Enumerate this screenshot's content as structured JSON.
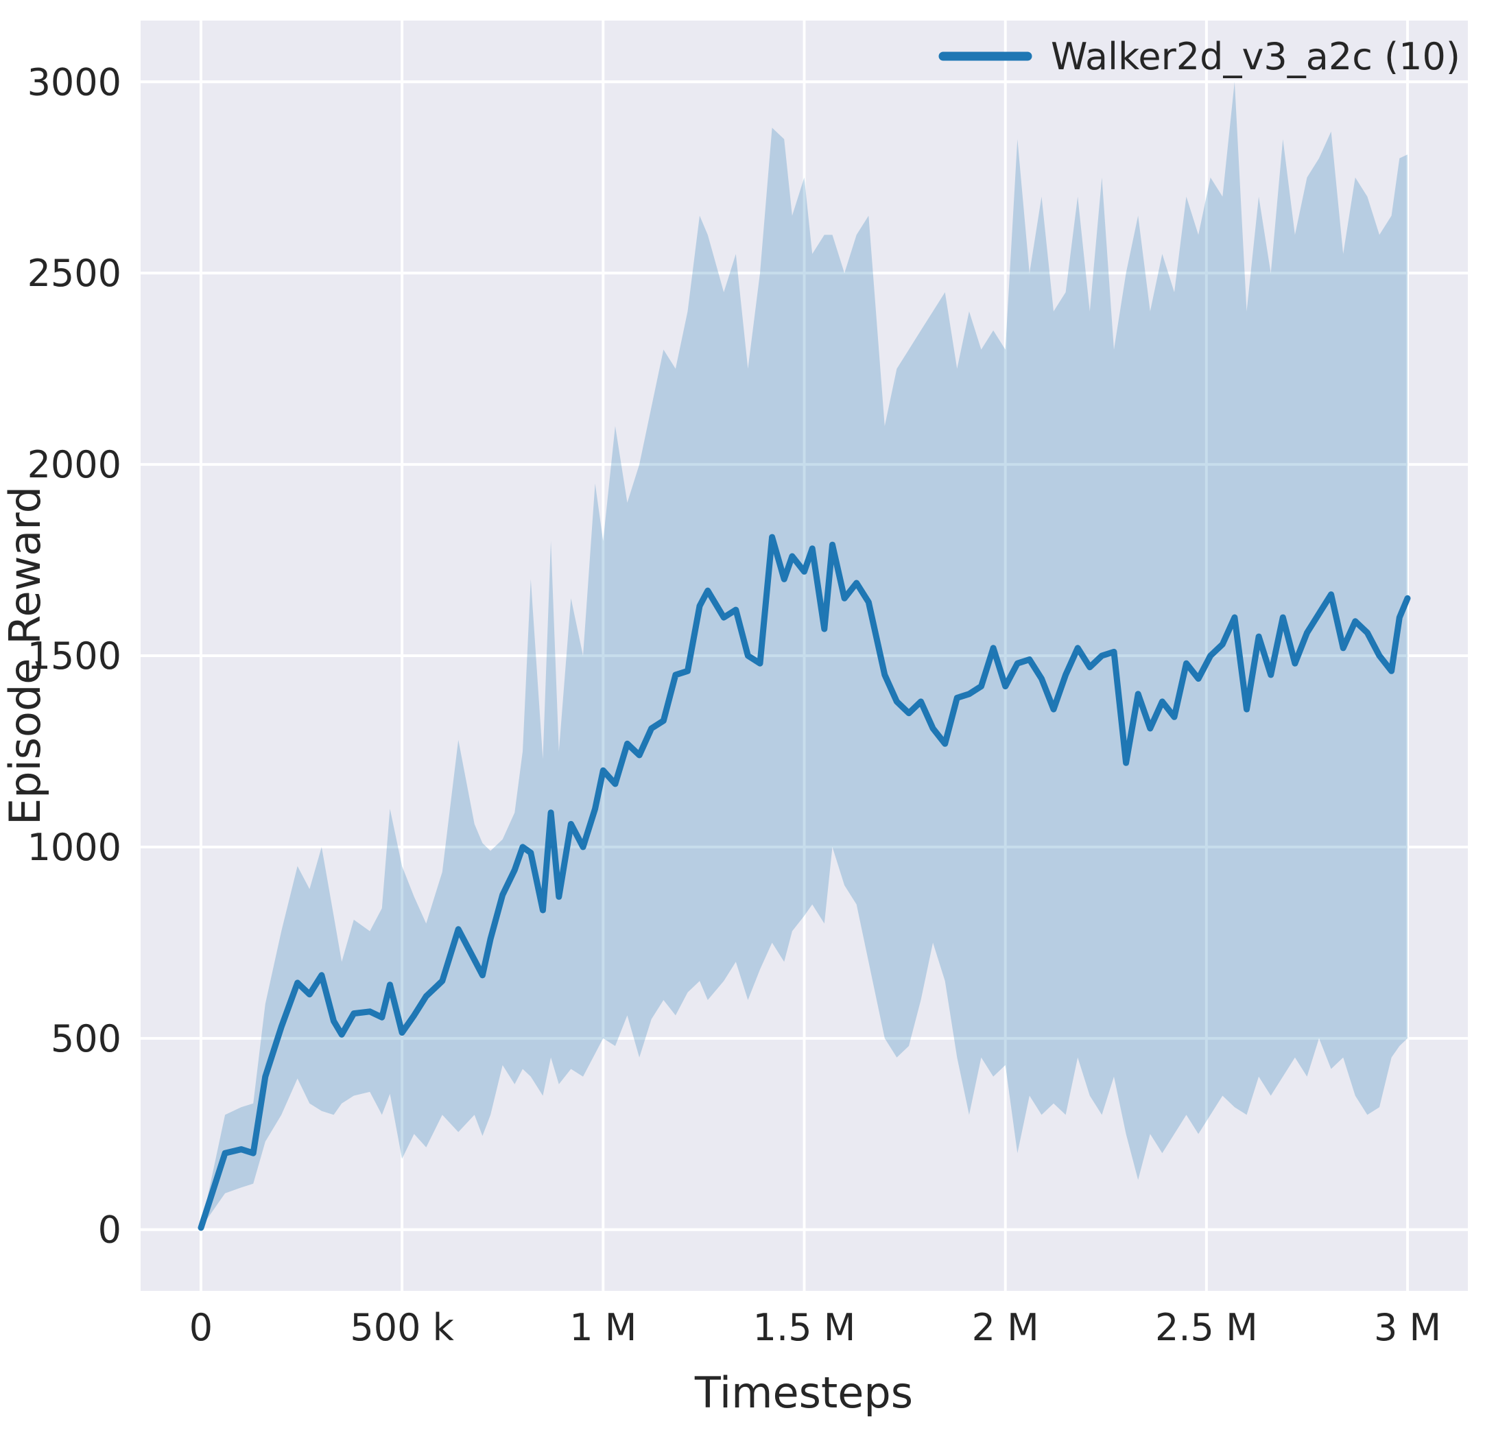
{
  "figure": {
    "legend": {
      "label": "Walker2d_v3_a2c (10)"
    }
  },
  "chart_data": {
    "type": "line",
    "title": "",
    "xlabel": "Timesteps",
    "ylabel": "Episode Reward",
    "xlim": [
      -150000,
      3150000
    ],
    "ylim": [
      -160,
      3160
    ],
    "grid": true,
    "legend_position": "upper right",
    "plot_background": "#eaeaf2",
    "grid_color": "#ffffff",
    "x_ticks": {
      "values": [
        0,
        500000,
        1000000,
        1500000,
        2000000,
        2500000,
        3000000
      ],
      "labels": [
        "0",
        "500 k",
        "1 M",
        "1.5 M",
        "2 M",
        "2.5 M",
        "3 M"
      ]
    },
    "y_ticks": {
      "values": [
        0,
        500,
        1000,
        1500,
        2000,
        2500,
        3000
      ],
      "labels": [
        "0",
        "500",
        "1000",
        "1500",
        "2000",
        "2500",
        "3000"
      ]
    },
    "series": [
      {
        "name": "Walker2d_v3_a2c (10)",
        "color": "#1f77b4",
        "band_opacity": 0.25,
        "x": [
          0,
          60000,
          100000,
          130000,
          160000,
          200000,
          240000,
          270000,
          300000,
          330000,
          350000,
          380000,
          420000,
          450000,
          470000,
          500000,
          530000,
          560000,
          600000,
          640000,
          680000,
          700000,
          720000,
          750000,
          780000,
          800000,
          820000,
          850000,
          870000,
          890000,
          920000,
          950000,
          980000,
          1000000,
          1030000,
          1060000,
          1090000,
          1120000,
          1150000,
          1180000,
          1210000,
          1240000,
          1260000,
          1300000,
          1330000,
          1360000,
          1390000,
          1420000,
          1450000,
          1470000,
          1500000,
          1520000,
          1550000,
          1570000,
          1600000,
          1630000,
          1660000,
          1700000,
          1730000,
          1760000,
          1790000,
          1820000,
          1850000,
          1880000,
          1910000,
          1940000,
          1970000,
          2000000,
          2030000,
          2060000,
          2090000,
          2120000,
          2150000,
          2180000,
          2210000,
          2240000,
          2270000,
          2300000,
          2330000,
          2360000,
          2390000,
          2420000,
          2450000,
          2480000,
          2510000,
          2540000,
          2570000,
          2600000,
          2630000,
          2660000,
          2690000,
          2720000,
          2750000,
          2780000,
          2810000,
          2840000,
          2870000,
          2900000,
          2930000,
          2960000,
          2980000,
          3000000
        ],
        "mean": [
          5,
          200,
          210,
          200,
          400,
          530,
          645,
          615,
          665,
          545,
          510,
          565,
          570,
          555,
          640,
          515,
          560,
          610,
          650,
          785,
          705,
          665,
          760,
          875,
          940,
          1000,
          985,
          835,
          1090,
          870,
          1060,
          1000,
          1100,
          1200,
          1165,
          1270,
          1240,
          1310,
          1330,
          1450,
          1460,
          1630,
          1670,
          1600,
          1620,
          1500,
          1480,
          1810,
          1700,
          1760,
          1720,
          1780,
          1570,
          1790,
          1650,
          1690,
          1640,
          1450,
          1380,
          1350,
          1380,
          1310,
          1270,
          1390,
          1400,
          1420,
          1520,
          1420,
          1480,
          1490,
          1440,
          1360,
          1450,
          1520,
          1470,
          1500,
          1510,
          1220,
          1400,
          1310,
          1380,
          1340,
          1480,
          1440,
          1500,
          1530,
          1600,
          1360,
          1550,
          1450,
          1600,
          1480,
          1560,
          1610,
          1660,
          1520,
          1590,
          1560,
          1500,
          1460,
          1600,
          1650
        ],
        "lower": [
          5,
          95,
          110,
          120,
          230,
          300,
          395,
          330,
          310,
          300,
          330,
          350,
          360,
          300,
          355,
          185,
          250,
          215,
          300,
          255,
          300,
          245,
          300,
          430,
          380,
          420,
          400,
          350,
          450,
          380,
          420,
          400,
          460,
          500,
          480,
          560,
          450,
          550,
          600,
          560,
          620,
          650,
          600,
          650,
          700,
          600,
          680,
          750,
          700,
          780,
          820,
          850,
          800,
          1000,
          900,
          850,
          700,
          500,
          450,
          480,
          600,
          750,
          650,
          450,
          300,
          450,
          400,
          430,
          200,
          350,
          300,
          330,
          300,
          450,
          350,
          300,
          400,
          250,
          130,
          250,
          200,
          250,
          300,
          250,
          300,
          350,
          320,
          300,
          400,
          350,
          400,
          450,
          400,
          500,
          420,
          450,
          350,
          300,
          320,
          450,
          480,
          500
        ],
        "upper": [
          5,
          300,
          320,
          330,
          590,
          780,
          950,
          890,
          1000,
          820,
          700,
          810,
          780,
          840,
          1100,
          950,
          870,
          800,
          935,
          1280,
          1060,
          1010,
          990,
          1020,
          1090,
          1250,
          1700,
          1230,
          1800,
          1250,
          1650,
          1500,
          1950,
          1800,
          2100,
          1900,
          2000,
          2150,
          2300,
          2250,
          2400,
          2650,
          2600,
          2450,
          2550,
          2250,
          2500,
          2880,
          2850,
          2650,
          2750,
          2550,
          2600,
          2600,
          2500,
          2600,
          2650,
          2100,
          2250,
          2300,
          2350,
          2400,
          2450,
          2250,
          2400,
          2300,
          2350,
          2300,
          2850,
          2500,
          2700,
          2400,
          2450,
          2700,
          2400,
          2750,
          2300,
          2500,
          2650,
          2400,
          2550,
          2450,
          2700,
          2600,
          2750,
          2700,
          3000,
          2400,
          2700,
          2500,
          2850,
          2600,
          2750,
          2800,
          2870,
          2550,
          2750,
          2700,
          2600,
          2650,
          2800,
          2810
        ]
      }
    ]
  }
}
